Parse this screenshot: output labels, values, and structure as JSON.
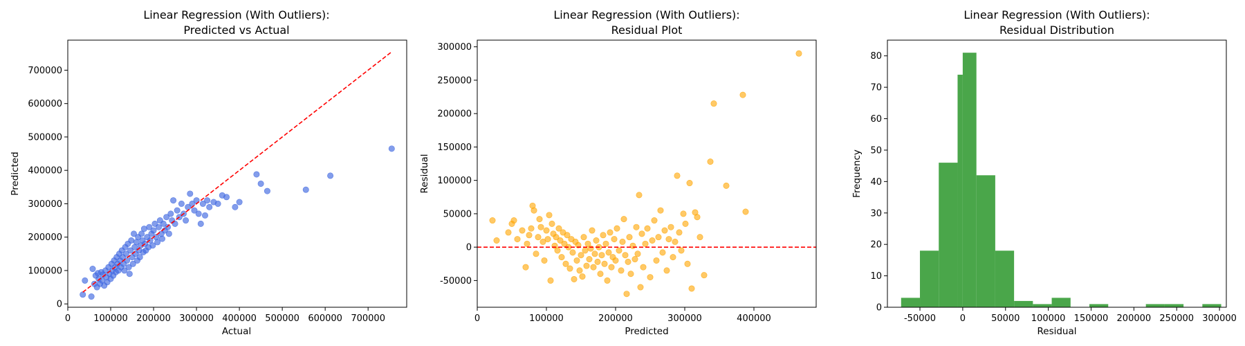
{
  "chart_data": [
    {
      "type": "scatter",
      "title_line1": "Linear Regression (With Outliers):",
      "title_line2": "Predicted vs Actual",
      "xlabel": "Actual",
      "ylabel": "Predicted",
      "xlim": [
        0,
        790000
      ],
      "ylim": [
        -10000,
        790000
      ],
      "xticks": [
        0,
        100000,
        200000,
        300000,
        400000,
        500000,
        600000,
        700000
      ],
      "yticks": [
        0,
        100000,
        200000,
        300000,
        400000,
        500000,
        600000,
        700000
      ],
      "point_color": "#4169e1",
      "reference_line": {
        "from": [
          35000,
          35000
        ],
        "to": [
          755000,
          755000
        ],
        "color": "#ff0000",
        "style": "dashed"
      },
      "points": [
        [
          35000,
          28000
        ],
        [
          40000,
          70000
        ],
        [
          55000,
          22000
        ],
        [
          58000,
          105000
        ],
        [
          62000,
          60000
        ],
        [
          65000,
          85000
        ],
        [
          68000,
          50000
        ],
        [
          70000,
          92000
        ],
        [
          72000,
          75000
        ],
        [
          75000,
          60000
        ],
        [
          78000,
          95000
        ],
        [
          80000,
          70000
        ],
        [
          82000,
          88000
        ],
        [
          85000,
          55000
        ],
        [
          88000,
          100000
        ],
        [
          90000,
          80000
        ],
        [
          92000,
          65000
        ],
        [
          95000,
          110000
        ],
        [
          97000,
          90000
        ],
        [
          100000,
          75000
        ],
        [
          102000,
          120000
        ],
        [
          104000,
          100000
        ],
        [
          106000,
          85000
        ],
        [
          108000,
          130000
        ],
        [
          110000,
          110000
        ],
        [
          112000,
          95000
        ],
        [
          114000,
          140000
        ],
        [
          116000,
          120000
        ],
        [
          118000,
          100000
        ],
        [
          120000,
          150000
        ],
        [
          122000,
          130000
        ],
        [
          124000,
          110000
        ],
        [
          126000,
          160000
        ],
        [
          128000,
          140000
        ],
        [
          130000,
          120000
        ],
        [
          132000,
          100000
        ],
        [
          134000,
          170000
        ],
        [
          136000,
          150000
        ],
        [
          138000,
          130000
        ],
        [
          140000,
          180000
        ],
        [
          142000,
          110000
        ],
        [
          144000,
          90000
        ],
        [
          146000,
          160000
        ],
        [
          148000,
          190000
        ],
        [
          150000,
          140000
        ],
        [
          152000,
          120000
        ],
        [
          154000,
          210000
        ],
        [
          156000,
          170000
        ],
        [
          158000,
          150000
        ],
        [
          160000,
          185000
        ],
        [
          162000,
          130000
        ],
        [
          164000,
          200000
        ],
        [
          166000,
          160000
        ],
        [
          168000,
          140000
        ],
        [
          170000,
          175000
        ],
        [
          172000,
          210000
        ],
        [
          174000,
          190000
        ],
        [
          176000,
          155000
        ],
        [
          178000,
          225000
        ],
        [
          180000,
          180000
        ],
        [
          182000,
          160000
        ],
        [
          185000,
          200000
        ],
        [
          188000,
          170000
        ],
        [
          190000,
          230000
        ],
        [
          192000,
          190000
        ],
        [
          195000,
          210000
        ],
        [
          198000,
          175000
        ],
        [
          200000,
          220000
        ],
        [
          203000,
          240000
        ],
        [
          206000,
          200000
        ],
        [
          209000,
          185000
        ],
        [
          212000,
          230000
        ],
        [
          215000,
          250000
        ],
        [
          218000,
          210000
        ],
        [
          220000,
          195000
        ],
        [
          223000,
          240000
        ],
        [
          226000,
          220000
        ],
        [
          230000,
          260000
        ],
        [
          233000,
          230000
        ],
        [
          236000,
          210000
        ],
        [
          240000,
          270000
        ],
        [
          243000,
          250000
        ],
        [
          246000,
          310000
        ],
        [
          250000,
          240000
        ],
        [
          255000,
          280000
        ],
        [
          260000,
          260000
        ],
        [
          265000,
          300000
        ],
        [
          270000,
          270000
        ],
        [
          275000,
          250000
        ],
        [
          280000,
          290000
        ],
        [
          285000,
          330000
        ],
        [
          290000,
          300000
        ],
        [
          295000,
          280000
        ],
        [
          300000,
          310000
        ],
        [
          305000,
          270000
        ],
        [
          310000,
          240000
        ],
        [
          315000,
          300000
        ],
        [
          320000,
          265000
        ],
        [
          325000,
          310000
        ],
        [
          330000,
          290000
        ],
        [
          340000,
          305000
        ],
        [
          350000,
          300000
        ],
        [
          360000,
          325000
        ],
        [
          370000,
          320000
        ],
        [
          390000,
          290000
        ],
        [
          400000,
          305000
        ],
        [
          440000,
          388000
        ],
        [
          450000,
          360000
        ],
        [
          465000,
          338000
        ],
        [
          555000,
          342000
        ],
        [
          612000,
          384000
        ],
        [
          755000,
          465000
        ]
      ]
    },
    {
      "type": "scatter",
      "title_line1": "Linear Regression (With Outliers):",
      "title_line2": "Residual Plot",
      "xlabel": "Predicted",
      "ylabel": "Residual",
      "xlim": [
        0,
        490000
      ],
      "ylim": [
        -90000,
        310000
      ],
      "xticks": [
        0,
        100000,
        200000,
        300000,
        400000
      ],
      "yticks": [
        -50000,
        0,
        50000,
        100000,
        150000,
        200000,
        250000,
        300000
      ],
      "point_color": "#ffa500",
      "reference_line": {
        "y": 0,
        "color": "#ff0000",
        "style": "dashed"
      },
      "points": [
        [
          22000,
          40000
        ],
        [
          28000,
          10000
        ],
        [
          45000,
          22000
        ],
        [
          50000,
          35000
        ],
        [
          53000,
          40000
        ],
        [
          58000,
          12000
        ],
        [
          65000,
          25000
        ],
        [
          70000,
          -30000
        ],
        [
          72000,
          5000
        ],
        [
          75000,
          18000
        ],
        [
          78000,
          28000
        ],
        [
          80000,
          62000
        ],
        [
          82000,
          55000
        ],
        [
          85000,
          -10000
        ],
        [
          88000,
          15000
        ],
        [
          90000,
          42000
        ],
        [
          92000,
          30000
        ],
        [
          95000,
          8000
        ],
        [
          97000,
          -20000
        ],
        [
          100000,
          25000
        ],
        [
          102000,
          12000
        ],
        [
          104000,
          48000
        ],
        [
          106000,
          -50000
        ],
        [
          108000,
          35000
        ],
        [
          110000,
          20000
        ],
        [
          112000,
          2000
        ],
        [
          114000,
          15000
        ],
        [
          116000,
          -5000
        ],
        [
          118000,
          28000
        ],
        [
          120000,
          10000
        ],
        [
          122000,
          -15000
        ],
        [
          124000,
          22000
        ],
        [
          126000,
          5000
        ],
        [
          128000,
          -25000
        ],
        [
          130000,
          18000
        ],
        [
          132000,
          0
        ],
        [
          134000,
          -32000
        ],
        [
          136000,
          12000
        ],
        [
          138000,
          -8000
        ],
        [
          140000,
          -48000
        ],
        [
          142000,
          8000
        ],
        [
          144000,
          -20000
        ],
        [
          146000,
          3000
        ],
        [
          148000,
          -35000
        ],
        [
          150000,
          -12000
        ],
        [
          152000,
          -44000
        ],
        [
          154000,
          15000
        ],
        [
          156000,
          -5000
        ],
        [
          158000,
          -28000
        ],
        [
          160000,
          5000
        ],
        [
          162000,
          -18000
        ],
        [
          164000,
          -2000
        ],
        [
          166000,
          25000
        ],
        [
          168000,
          -30000
        ],
        [
          170000,
          -10000
        ],
        [
          172000,
          10000
        ],
        [
          174000,
          -22000
        ],
        [
          176000,
          0
        ],
        [
          178000,
          -40000
        ],
        [
          180000,
          -12000
        ],
        [
          182000,
          18000
        ],
        [
          184000,
          -25000
        ],
        [
          186000,
          5000
        ],
        [
          188000,
          -50000
        ],
        [
          190000,
          -8000
        ],
        [
          192000,
          22000
        ],
        [
          194000,
          -30000
        ],
        [
          196000,
          -15000
        ],
        [
          198000,
          12000
        ],
        [
          200000,
          -20000
        ],
        [
          202000,
          28000
        ],
        [
          205000,
          -5000
        ],
        [
          208000,
          -35000
        ],
        [
          210000,
          8000
        ],
        [
          212000,
          42000
        ],
        [
          214000,
          -12000
        ],
        [
          216000,
          -70000
        ],
        [
          218000,
          -22000
        ],
        [
          220000,
          15000
        ],
        [
          222000,
          -40000
        ],
        [
          225000,
          2000
        ],
        [
          228000,
          -18000
        ],
        [
          230000,
          30000
        ],
        [
          232000,
          -10000
        ],
        [
          234000,
          78000
        ],
        [
          236000,
          -60000
        ],
        [
          238000,
          20000
        ],
        [
          240000,
          -30000
        ],
        [
          243000,
          5000
        ],
        [
          246000,
          28000
        ],
        [
          250000,
          -45000
        ],
        [
          253000,
          10000
        ],
        [
          256000,
          40000
        ],
        [
          259000,
          -20000
        ],
        [
          262000,
          15000
        ],
        [
          265000,
          55000
        ],
        [
          268000,
          -8000
        ],
        [
          271000,
          25000
        ],
        [
          274000,
          -35000
        ],
        [
          277000,
          12000
        ],
        [
          280000,
          30000
        ],
        [
          283000,
          -15000
        ],
        [
          286000,
          8000
        ],
        [
          289000,
          107000
        ],
        [
          292000,
          22000
        ],
        [
          295000,
          -5000
        ],
        [
          298000,
          50000
        ],
        [
          301000,
          35000
        ],
        [
          304000,
          -25000
        ],
        [
          307000,
          96000
        ],
        [
          310000,
          -62000
        ],
        [
          315000,
          52000
        ],
        [
          318000,
          45000
        ],
        [
          322000,
          15000
        ],
        [
          328000,
          -42000
        ],
        [
          337000,
          128000
        ],
        [
          342000,
          215000
        ],
        [
          360000,
          92000
        ],
        [
          384000,
          228000
        ],
        [
          388000,
          53000
        ],
        [
          465000,
          290000
        ]
      ]
    },
    {
      "type": "bar",
      "title_line1": "Linear Regression (With Outliers):",
      "title_line2": "Residual Distribution",
      "xlabel": "Residual",
      "ylabel": "Frequency",
      "xlim": [
        -88000,
        308000
      ],
      "ylim": [
        0,
        85
      ],
      "xticks": [
        -50000,
        0,
        50000,
        100000,
        150000,
        200000,
        250000,
        300000
      ],
      "yticks": [
        0,
        10,
        20,
        30,
        40,
        50,
        60,
        70,
        80
      ],
      "bar_color": "#4aa64a",
      "bin_edges": [
        -72000,
        -50000,
        -28000,
        -6000,
        16000,
        38000,
        60000,
        82000,
        104000,
        126000,
        148000,
        170000,
        192000,
        214000,
        236000,
        258000,
        280000
      ],
      "bin_edges_note": "",
      "bins": [
        {
          "x0": -72000,
          "x1": -50000,
          "count": 3
        },
        {
          "x0": -50000,
          "x1": -28000,
          "count": 18
        },
        {
          "x0": -28000,
          "x1": -6000,
          "count": 46
        },
        {
          "x0": -6000,
          "x1": 0,
          "count": 74
        },
        {
          "x0": 0,
          "x1": 16000,
          "count": 81
        },
        {
          "x0": 16000,
          "x1": 38000,
          "count": 42
        },
        {
          "x0": 38000,
          "x1": 60000,
          "count": 18
        },
        {
          "x0": 60000,
          "x1": 82000,
          "count": 2
        },
        {
          "x0": 82000,
          "x1": 104000,
          "count": 1
        },
        {
          "x0": 104000,
          "x1": 126000,
          "count": 3
        },
        {
          "x0": 148000,
          "x1": 170000,
          "count": 1
        },
        {
          "x0": 214000,
          "x1": 236000,
          "count": 1
        },
        {
          "x0": 236000,
          "x1": 258000,
          "count": 1
        },
        {
          "x0": 280000,
          "x1": 302000,
          "count": 1
        }
      ]
    }
  ]
}
